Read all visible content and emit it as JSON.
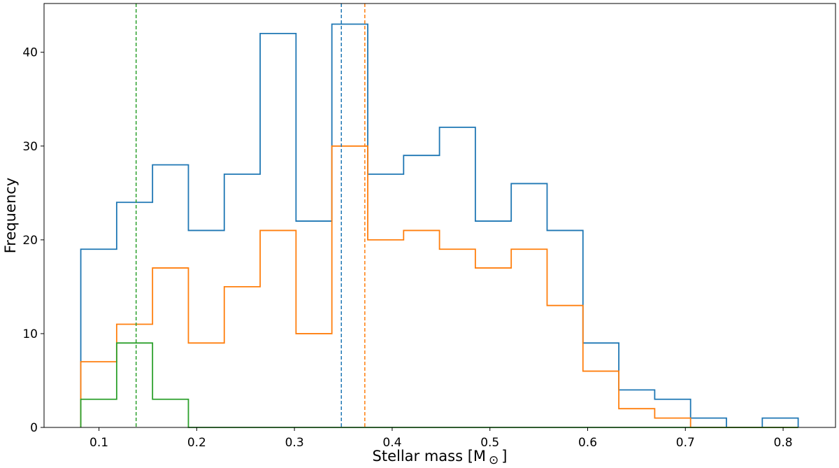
{
  "chart_data": {
    "type": "histogram-step",
    "xlabel": "Stellar mass [M",
    "xlabel_symbol": "⊙",
    "ylabel": "Frequency",
    "xlim": [
      0.0438,
      0.8536
    ],
    "ylim": [
      0,
      45.2
    ],
    "xticks": [
      "0.1",
      "0.2",
      "0.3",
      "0.4",
      "0.5",
      "0.6",
      "0.7",
      "0.8"
    ],
    "xtick_values": [
      0.1,
      0.2,
      0.3,
      0.4,
      0.5,
      0.6,
      0.7,
      0.8
    ],
    "yticks": [
      "0",
      "10",
      "20",
      "30",
      "40"
    ],
    "ytick_values": [
      0,
      10,
      20,
      30,
      40
    ],
    "grid": false,
    "bin_start": 0.0814,
    "bin_width": 0.0367,
    "series": [
      {
        "color": "#1f77b4",
        "counts": [
          19,
          24,
          28,
          21,
          27,
          42,
          22,
          43,
          27,
          29,
          32,
          22,
          26,
          21,
          9,
          4,
          3,
          1,
          0,
          1
        ],
        "mean_line": 0.348
      },
      {
        "color": "#ff7f0e",
        "counts": [
          7,
          11,
          17,
          9,
          15,
          21,
          10,
          30,
          20,
          21,
          19,
          17,
          19,
          13,
          6,
          2,
          1,
          0,
          0,
          0
        ],
        "mean_line": 0.372
      },
      {
        "color": "#2ca02c",
        "counts": [
          3,
          9,
          3,
          0,
          0,
          0,
          0,
          0,
          0,
          0,
          0,
          0,
          0,
          0,
          0,
          0,
          0,
          0,
          0,
          0
        ],
        "mean_line": 0.138
      }
    ]
  }
}
